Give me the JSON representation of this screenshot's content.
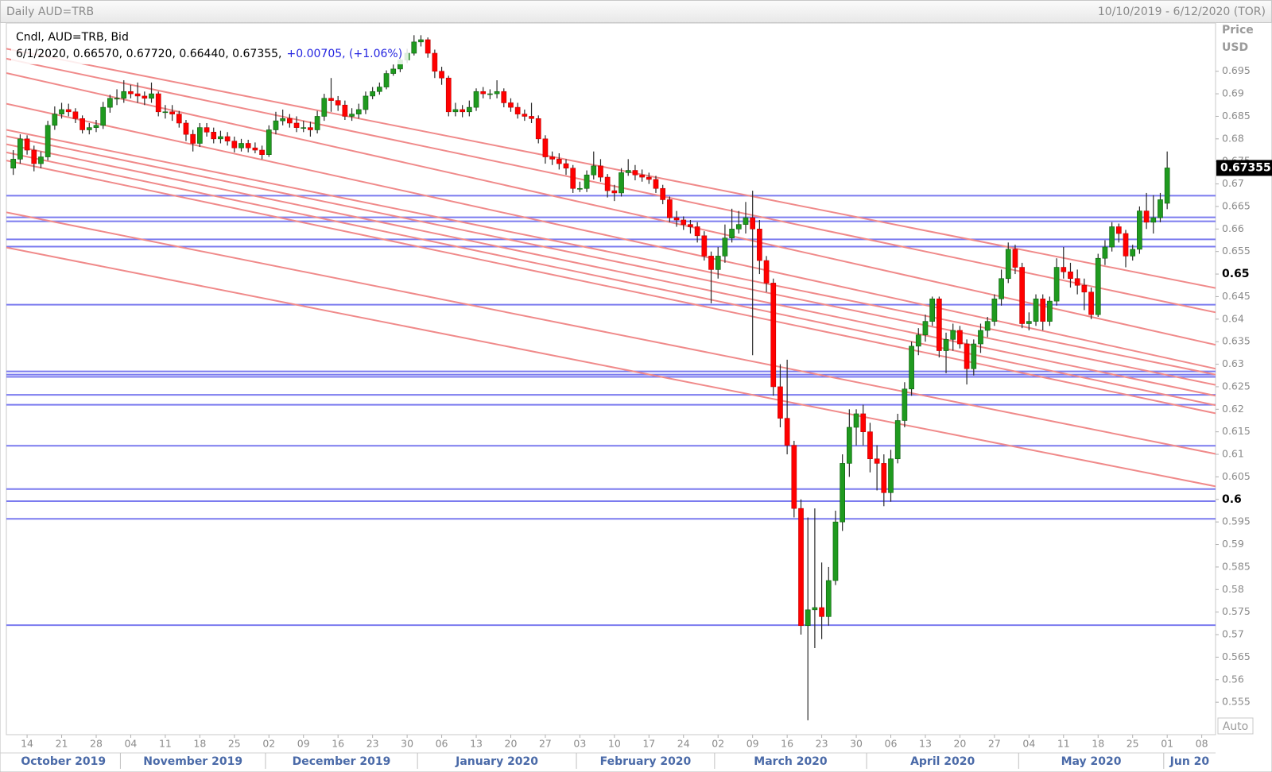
{
  "chart_data": {
    "type": "candlestick",
    "title": "Daily AUD=TRB",
    "date_range": "10/10/2019 - 6/12/2020 (TOR)",
    "info_title": "Cndl, AUD=TRB, Bid",
    "info_values": "6/1/2020, 0.66570, 0.67720, 0.66440, 0.67355,",
    "info_change": "+0.00705, (+1.06%)",
    "axis_title": "Price",
    "currency": "USD",
    "scale_mode": "Auto",
    "up_color": "#1f9a1f",
    "down_color": "#ff0000",
    "hline_color": "#7b7bef",
    "trend_color": "#f08a8a",
    "x": [
      "2019-10-10",
      "2019-10-11",
      "2019-10-14",
      "2019-10-15",
      "2019-10-16",
      "2019-10-17",
      "2019-10-18",
      "2019-10-21",
      "2019-10-22",
      "2019-10-23",
      "2019-10-24",
      "2019-10-25",
      "2019-10-28",
      "2019-10-29",
      "2019-10-30",
      "2019-10-31",
      "2019-11-01",
      "2019-11-04",
      "2019-11-05",
      "2019-11-06",
      "2019-11-07",
      "2019-11-08",
      "2019-11-11",
      "2019-11-12",
      "2019-11-13",
      "2019-11-14",
      "2019-11-15",
      "2019-11-18",
      "2019-11-19",
      "2019-11-20",
      "2019-11-21",
      "2019-11-22",
      "2019-11-25",
      "2019-11-26",
      "2019-11-27",
      "2019-11-28",
      "2019-11-29",
      "2019-12-02",
      "2019-12-03",
      "2019-12-04",
      "2019-12-05",
      "2019-12-06",
      "2019-12-09",
      "2019-12-10",
      "2019-12-11",
      "2019-12-12",
      "2019-12-13",
      "2019-12-16",
      "2019-12-17",
      "2019-12-18",
      "2019-12-19",
      "2019-12-20",
      "2019-12-23",
      "2019-12-24",
      "2019-12-25",
      "2019-12-26",
      "2019-12-27",
      "2019-12-30",
      "2019-12-31",
      "2020-01-01",
      "2020-01-02",
      "2020-01-03",
      "2020-01-06",
      "2020-01-07",
      "2020-01-08",
      "2020-01-09",
      "2020-01-10",
      "2020-01-13",
      "2020-01-14",
      "2020-01-15",
      "2020-01-16",
      "2020-01-17",
      "2020-01-20",
      "2020-01-21",
      "2020-01-22",
      "2020-01-23",
      "2020-01-24",
      "2020-01-27",
      "2020-01-28",
      "2020-01-29",
      "2020-01-30",
      "2020-01-31",
      "2020-02-03",
      "2020-02-04",
      "2020-02-05",
      "2020-02-06",
      "2020-02-07",
      "2020-02-10",
      "2020-02-11",
      "2020-02-12",
      "2020-02-13",
      "2020-02-14",
      "2020-02-17",
      "2020-02-18",
      "2020-02-19",
      "2020-02-20",
      "2020-02-21",
      "2020-02-24",
      "2020-02-25",
      "2020-02-26",
      "2020-02-27",
      "2020-02-28",
      "2020-03-02",
      "2020-03-03",
      "2020-03-04",
      "2020-03-05",
      "2020-03-06",
      "2020-03-09",
      "2020-03-10",
      "2020-03-11",
      "2020-03-12",
      "2020-03-13",
      "2020-03-16",
      "2020-03-17",
      "2020-03-18",
      "2020-03-19",
      "2020-03-20",
      "2020-03-23",
      "2020-03-24",
      "2020-03-25",
      "2020-03-26",
      "2020-03-27",
      "2020-03-30",
      "2020-03-31",
      "2020-04-01",
      "2020-04-02",
      "2020-04-03",
      "2020-04-06",
      "2020-04-07",
      "2020-04-08",
      "2020-04-09",
      "2020-04-10",
      "2020-04-13",
      "2020-04-14",
      "2020-04-15",
      "2020-04-16",
      "2020-04-17",
      "2020-04-20",
      "2020-04-21",
      "2020-04-22",
      "2020-04-23",
      "2020-04-24",
      "2020-04-27",
      "2020-04-28",
      "2020-04-29",
      "2020-04-30",
      "2020-05-01",
      "2020-05-04",
      "2020-05-05",
      "2020-05-06",
      "2020-05-07",
      "2020-05-08",
      "2020-05-11",
      "2020-05-12",
      "2020-05-13",
      "2020-05-14",
      "2020-05-15",
      "2020-05-18",
      "2020-05-19",
      "2020-05-20",
      "2020-05-21",
      "2020-05-22",
      "2020-05-25",
      "2020-05-26",
      "2020-05-27",
      "2020-05-28",
      "2020-05-29",
      "2020-06-01"
    ],
    "open": [
      0.6735,
      0.6755,
      0.68,
      0.6775,
      0.6745,
      0.676,
      0.683,
      0.6855,
      0.6865,
      0.686,
      0.6845,
      0.682,
      0.6825,
      0.683,
      0.687,
      0.689,
      0.689,
      0.6905,
      0.69,
      0.6895,
      0.689,
      0.69,
      0.686,
      0.686,
      0.6855,
      0.6835,
      0.681,
      0.679,
      0.6825,
      0.6815,
      0.68,
      0.6805,
      0.6795,
      0.678,
      0.679,
      0.678,
      0.6775,
      0.6765,
      0.682,
      0.684,
      0.6845,
      0.6835,
      0.6825,
      0.6825,
      0.682,
      0.685,
      0.689,
      0.6885,
      0.6875,
      0.685,
      0.6855,
      0.6865,
      0.6895,
      0.6905,
      0.6915,
      0.6945,
      0.6955,
      0.6975,
      0.699,
      0.7015,
      0.702,
      0.699,
      0.695,
      0.6935,
      0.686,
      0.6865,
      0.686,
      0.687,
      0.6905,
      0.69,
      0.69,
      0.6905,
      0.688,
      0.687,
      0.6855,
      0.685,
      0.6845,
      0.68,
      0.676,
      0.6755,
      0.6745,
      0.6735,
      0.669,
      0.669,
      0.672,
      0.674,
      0.6715,
      0.6685,
      0.668,
      0.6725,
      0.673,
      0.672,
      0.6715,
      0.671,
      0.669,
      0.6665,
      0.6625,
      0.662,
      0.661,
      0.6605,
      0.6585,
      0.654,
      0.651,
      0.654,
      0.658,
      0.66,
      0.661,
      0.6625,
      0.66,
      0.653,
      0.648,
      0.625,
      0.618,
      0.612,
      0.598,
      0.572,
      0.5755,
      0.576,
      0.574,
      0.582,
      0.595,
      0.608,
      0.616,
      0.619,
      0.615,
      0.609,
      0.608,
      0.6015,
      0.609,
      0.6175,
      0.6245,
      0.634,
      0.6365,
      0.6395,
      0.6445,
      0.633,
      0.6355,
      0.6375,
      0.6345,
      0.629,
      0.6345,
      0.6375,
      0.6395,
      0.6445,
      0.649,
      0.6555,
      0.6515,
      0.639,
      0.6395,
      0.6445,
      0.6395,
      0.644,
      0.6515,
      0.6505,
      0.649,
      0.6475,
      0.646,
      0.641,
      0.6535,
      0.656,
      0.6605,
      0.659,
      0.654,
      0.6555,
      0.664,
      0.6615,
      0.6625,
      0.6657
    ],
    "high": [
      0.6775,
      0.681,
      0.6808,
      0.6785,
      0.6772,
      0.684,
      0.6872,
      0.688,
      0.6878,
      0.6868,
      0.6852,
      0.6835,
      0.6842,
      0.6882,
      0.6898,
      0.691,
      0.693,
      0.692,
      0.6925,
      0.6905,
      0.6925,
      0.6905,
      0.6875,
      0.6875,
      0.6862,
      0.6842,
      0.682,
      0.6835,
      0.6835,
      0.6825,
      0.6818,
      0.6815,
      0.6805,
      0.68,
      0.6798,
      0.6792,
      0.6785,
      0.683,
      0.686,
      0.6865,
      0.6855,
      0.685,
      0.684,
      0.6838,
      0.6862,
      0.69,
      0.6935,
      0.6895,
      0.6885,
      0.6868,
      0.6878,
      0.6905,
      0.6915,
      0.6925,
      0.6952,
      0.6965,
      0.6985,
      0.7,
      0.703,
      0.703,
      0.7025,
      0.6998,
      0.696,
      0.694,
      0.688,
      0.6875,
      0.6885,
      0.6912,
      0.6915,
      0.691,
      0.693,
      0.6912,
      0.689,
      0.688,
      0.6865,
      0.688,
      0.6852,
      0.6808,
      0.6772,
      0.6768,
      0.6755,
      0.6742,
      0.6705,
      0.673,
      0.6772,
      0.6755,
      0.6722,
      0.6698,
      0.6735,
      0.6755,
      0.6742,
      0.6732,
      0.6725,
      0.6718,
      0.6698,
      0.6672,
      0.664,
      0.6628,
      0.662,
      0.6615,
      0.6595,
      0.655,
      0.656,
      0.661,
      0.6645,
      0.664,
      0.666,
      0.6685,
      0.662,
      0.654,
      0.649,
      0.63,
      0.631,
      0.613,
      0.6,
      0.596,
      0.598,
      0.586,
      0.585,
      0.5975,
      0.61,
      0.62,
      0.62,
      0.621,
      0.617,
      0.612,
      0.61,
      0.611,
      0.619,
      0.626,
      0.635,
      0.638,
      0.641,
      0.645,
      0.645,
      0.637,
      0.639,
      0.6385,
      0.6355,
      0.6355,
      0.639,
      0.6405,
      0.6455,
      0.651,
      0.657,
      0.6565,
      0.6525,
      0.6415,
      0.6455,
      0.6455,
      0.645,
      0.6535,
      0.656,
      0.6525,
      0.651,
      0.649,
      0.647,
      0.6545,
      0.6575,
      0.6615,
      0.6612,
      0.6598,
      0.6565,
      0.665,
      0.668,
      0.6675,
      0.668,
      0.6772
    ],
    "low": [
      0.672,
      0.6745,
      0.6765,
      0.6728,
      0.6735,
      0.6752,
      0.682,
      0.6845,
      0.685,
      0.6835,
      0.6812,
      0.681,
      0.6815,
      0.6822,
      0.6858,
      0.6875,
      0.688,
      0.689,
      0.688,
      0.6875,
      0.688,
      0.685,
      0.6845,
      0.684,
      0.6825,
      0.6795,
      0.6772,
      0.6782,
      0.6805,
      0.679,
      0.679,
      0.6785,
      0.677,
      0.6772,
      0.677,
      0.6768,
      0.6755,
      0.676,
      0.681,
      0.683,
      0.6825,
      0.6815,
      0.6815,
      0.6805,
      0.6812,
      0.684,
      0.686,
      0.6862,
      0.6842,
      0.684,
      0.6845,
      0.6855,
      0.6888,
      0.6898,
      0.691,
      0.694,
      0.6948,
      0.6968,
      0.6985,
      0.7005,
      0.698,
      0.6935,
      0.692,
      0.685,
      0.685,
      0.6848,
      0.685,
      0.6862,
      0.689,
      0.6888,
      0.689,
      0.687,
      0.686,
      0.6845,
      0.684,
      0.6835,
      0.679,
      0.6745,
      0.6742,
      0.6732,
      0.672,
      0.668,
      0.6682,
      0.6682,
      0.671,
      0.6705,
      0.667,
      0.6662,
      0.6672,
      0.6718,
      0.6708,
      0.6705,
      0.67,
      0.668,
      0.6655,
      0.6615,
      0.6605,
      0.6598,
      0.659,
      0.657,
      0.653,
      0.6435,
      0.649,
      0.6525,
      0.657,
      0.659,
      0.659,
      0.632,
      0.65,
      0.646,
      0.623,
      0.616,
      0.61,
      0.596,
      0.57,
      0.551,
      0.567,
      0.569,
      0.572,
      0.581,
      0.593,
      0.605,
      0.612,
      0.612,
      0.606,
      0.602,
      0.5985,
      0.5995,
      0.608,
      0.616,
      0.623,
      0.632,
      0.635,
      0.6385,
      0.6315,
      0.628,
      0.633,
      0.6335,
      0.6255,
      0.6275,
      0.6325,
      0.636,
      0.6385,
      0.643,
      0.648,
      0.65,
      0.638,
      0.6375,
      0.6385,
      0.6375,
      0.6385,
      0.643,
      0.649,
      0.647,
      0.6455,
      0.642,
      0.64,
      0.6405,
      0.652,
      0.655,
      0.657,
      0.6515,
      0.653,
      0.6545,
      0.66,
      0.659,
      0.6615,
      0.6644
    ],
    "close": [
      0.6755,
      0.68,
      0.6775,
      0.6745,
      0.676,
      0.683,
      0.6855,
      0.6865,
      0.686,
      0.6845,
      0.682,
      0.6825,
      0.683,
      0.687,
      0.689,
      0.689,
      0.6905,
      0.69,
      0.6895,
      0.689,
      0.69,
      0.686,
      0.686,
      0.6855,
      0.6835,
      0.681,
      0.679,
      0.6825,
      0.6815,
      0.68,
      0.6805,
      0.6795,
      0.678,
      0.679,
      0.678,
      0.6775,
      0.6765,
      0.682,
      0.684,
      0.6845,
      0.6835,
      0.6825,
      0.6825,
      0.682,
      0.685,
      0.689,
      0.6885,
      0.6875,
      0.685,
      0.6855,
      0.6865,
      0.6895,
      0.6905,
      0.6915,
      0.6945,
      0.6955,
      0.6975,
      0.699,
      0.7015,
      0.702,
      0.699,
      0.695,
      0.6935,
      0.686,
      0.6865,
      0.686,
      0.687,
      0.6905,
      0.69,
      0.69,
      0.6905,
      0.688,
      0.687,
      0.6855,
      0.685,
      0.6845,
      0.68,
      0.676,
      0.6755,
      0.6745,
      0.6735,
      0.669,
      0.669,
      0.672,
      0.674,
      0.6715,
      0.6685,
      0.668,
      0.6725,
      0.673,
      0.672,
      0.6715,
      0.671,
      0.669,
      0.6665,
      0.6625,
      0.662,
      0.661,
      0.6605,
      0.6585,
      0.654,
      0.651,
      0.654,
      0.658,
      0.66,
      0.661,
      0.6625,
      0.66,
      0.653,
      0.648,
      0.625,
      0.618,
      0.612,
      0.598,
      0.572,
      0.5755,
      0.576,
      0.574,
      0.582,
      0.595,
      0.608,
      0.616,
      0.619,
      0.615,
      0.609,
      0.608,
      0.6015,
      0.609,
      0.6175,
      0.6245,
      0.634,
      0.6365,
      0.6395,
      0.6445,
      0.633,
      0.6355,
      0.6375,
      0.6345,
      0.629,
      0.6345,
      0.6375,
      0.6395,
      0.6445,
      0.649,
      0.6555,
      0.6515,
      0.639,
      0.6395,
      0.6445,
      0.6395,
      0.644,
      0.6515,
      0.6505,
      0.649,
      0.6475,
      0.646,
      0.641,
      0.6535,
      0.656,
      0.6605,
      0.659,
      0.654,
      0.6555,
      0.664,
      0.6615,
      0.6625,
      0.6665,
      0.67355
    ],
    "xlim": [
      "2019-10-09",
      "2020-06-10"
    ],
    "ylim": [
      0.5478,
      0.7057
    ],
    "yticks": [
      0.555,
      0.56,
      0.565,
      0.57,
      0.575,
      0.58,
      0.585,
      0.59,
      0.595,
      0.6,
      0.605,
      0.61,
      0.615,
      0.62,
      0.625,
      0.63,
      0.635,
      0.64,
      0.645,
      0.65,
      0.655,
      0.66,
      0.665,
      0.67,
      0.675,
      0.68,
      0.685,
      0.69,
      0.695
    ],
    "xticks": [
      {
        "value": "2019-10-14",
        "label": "14"
      },
      {
        "value": "2019-10-21",
        "label": "21"
      },
      {
        "value": "2019-10-28",
        "label": "28"
      },
      {
        "value": "2019-11-04",
        "label": "04"
      },
      {
        "value": "2019-11-11",
        "label": "11"
      },
      {
        "value": "2019-11-18",
        "label": "18"
      },
      {
        "value": "2019-11-25",
        "label": "25"
      },
      {
        "value": "2019-12-02",
        "label": "02"
      },
      {
        "value": "2019-12-09",
        "label": "09"
      },
      {
        "value": "2019-12-16",
        "label": "16"
      },
      {
        "value": "2019-12-23",
        "label": "23"
      },
      {
        "value": "2019-12-30",
        "label": "30"
      },
      {
        "value": "2020-01-06",
        "label": "06"
      },
      {
        "value": "2020-01-13",
        "label": "13"
      },
      {
        "value": "2020-01-20",
        "label": "20"
      },
      {
        "value": "2020-01-27",
        "label": "27"
      },
      {
        "value": "2020-02-03",
        "label": "03"
      },
      {
        "value": "2020-02-10",
        "label": "10"
      },
      {
        "value": "2020-02-17",
        "label": "17"
      },
      {
        "value": "2020-02-24",
        "label": "24"
      },
      {
        "value": "2020-03-02",
        "label": "02"
      },
      {
        "value": "2020-03-09",
        "label": "09"
      },
      {
        "value": "2020-03-16",
        "label": "16"
      },
      {
        "value": "2020-03-23",
        "label": "23"
      },
      {
        "value": "2020-03-30",
        "label": "30"
      },
      {
        "value": "2020-04-06",
        "label": "06"
      },
      {
        "value": "2020-04-13",
        "label": "13"
      },
      {
        "value": "2020-04-20",
        "label": "20"
      },
      {
        "value": "2020-04-27",
        "label": "27"
      },
      {
        "value": "2020-05-04",
        "label": "04"
      },
      {
        "value": "2020-05-11",
        "label": "11"
      },
      {
        "value": "2020-05-18",
        "label": "18"
      },
      {
        "value": "2020-05-25",
        "label": "25"
      },
      {
        "value": "2020-06-01",
        "label": "01"
      },
      {
        "value": "2020-06-08",
        "label": "08"
      }
    ],
    "months": [
      {
        "value": "2019-10",
        "label": "October 2019"
      },
      {
        "value": "2019-11",
        "label": "November 2019"
      },
      {
        "value": "2019-12",
        "label": "December 2019"
      },
      {
        "value": "2020-01",
        "label": "January 2020"
      },
      {
        "value": "2020-02",
        "label": "February 2020"
      },
      {
        "value": "2020-03",
        "label": "March 2020"
      },
      {
        "value": "2020-04",
        "label": "April 2020"
      },
      {
        "value": "2020-05",
        "label": "May 2020"
      },
      {
        "value": "2020-06",
        "label": "Jun 20"
      }
    ],
    "hlines": [
      0.6674,
      0.6626,
      0.6617,
      0.6577,
      0.6561,
      0.6432,
      0.6284,
      0.6277,
      0.6272,
      0.6232,
      0.621,
      0.6119,
      0.6023,
      0.5996,
      0.5957,
      0.5721
    ],
    "trend_lines": [
      {
        "x": [
          "2019-10-09",
          "2020-06-10"
        ],
        "y": [
          0.7,
          0.6469
        ]
      },
      {
        "x": [
          "2019-10-09",
          "2020-06-10"
        ],
        "y": [
          0.6978,
          0.6415
        ]
      },
      {
        "x": [
          "2019-10-09",
          "2020-06-10"
        ],
        "y": [
          0.6946,
          0.6343
        ]
      },
      {
        "x": [
          "2019-10-09",
          "2020-06-10"
        ],
        "y": [
          0.6878,
          0.629
        ]
      },
      {
        "x": [
          "2019-10-09",
          "2020-06-10"
        ],
        "y": [
          0.682,
          0.6277
        ]
      },
      {
        "x": [
          "2019-10-09",
          "2020-06-10"
        ],
        "y": [
          0.6806,
          0.6254
        ]
      },
      {
        "x": [
          "2019-10-09",
          "2020-06-10"
        ],
        "y": [
          0.6788,
          0.623
        ]
      },
      {
        "x": [
          "2019-10-09",
          "2020-06-10"
        ],
        "y": [
          0.677,
          0.6209
        ]
      },
      {
        "x": [
          "2019-10-09",
          "2020-06-10"
        ],
        "y": [
          0.6752,
          0.6191
        ]
      },
      {
        "x": [
          "2019-10-09",
          "2020-06-10"
        ],
        "y": [
          0.6637,
          0.6101
        ]
      },
      {
        "x": [
          "2019-10-09",
          "2020-06-10"
        ],
        "y": [
          0.6559,
          0.6029
        ]
      }
    ]
  }
}
